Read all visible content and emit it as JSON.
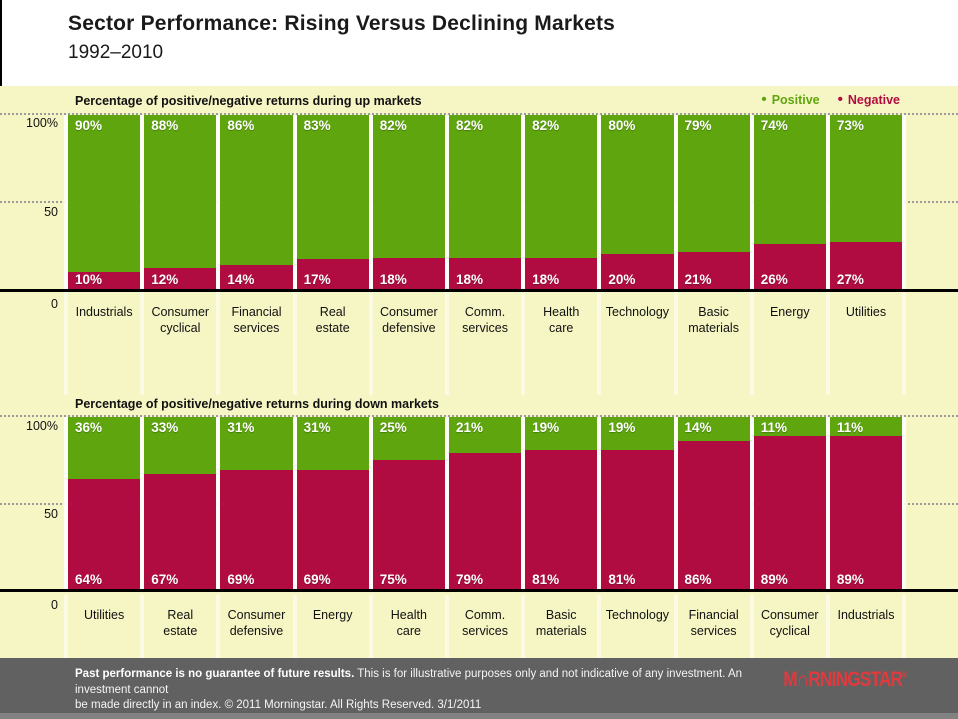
{
  "header": {
    "title": "Sector Performance: Rising Versus Declining Markets",
    "subtitle": "1992–2010"
  },
  "legend": {
    "positive": "Positive",
    "negative": "Negative",
    "bullet": "•"
  },
  "axis": {
    "pct100": "100%",
    "mid": "50",
    "zero": "0"
  },
  "colors": {
    "positive": "#5FA60E",
    "negative": "#B10C41",
    "panel_bg": "#F6F5C4",
    "footer_bg": "#616161",
    "logo_red": "#E03A3E",
    "gridline": "#9B9B9B",
    "zeroline": "#000000"
  },
  "chart_data": [
    {
      "type": "bar",
      "stacked": true,
      "name": "up-markets",
      "title": "Percentage of positive/negative returns during up markets",
      "categories": [
        "Industrials",
        "Consumer\ncyclical",
        "Financial\nservices",
        "Real\nestate",
        "Consumer\ndefensive",
        "Comm.\nservices",
        "Health\ncare",
        "Technology",
        "Basic\nmaterials",
        "Energy",
        "Utilities"
      ],
      "series": [
        {
          "name": "Positive",
          "values": [
            90,
            88,
            86,
            83,
            82,
            82,
            82,
            80,
            79,
            74,
            73
          ]
        },
        {
          "name": "Negative",
          "values": [
            10,
            12,
            14,
            17,
            18,
            18,
            18,
            20,
            21,
            26,
            27
          ]
        }
      ],
      "value_suffix": "%",
      "ylim": [
        0,
        100
      ],
      "yticks": [
        "100%",
        "50",
        "0"
      ],
      "legend_position": "top-right",
      "grid": "dotted-horizontal"
    },
    {
      "type": "bar",
      "stacked": true,
      "name": "down-markets",
      "title": "Percentage of positive/negative returns during down markets",
      "categories": [
        "Utilities",
        "Real\nestate",
        "Consumer\ndefensive",
        "Energy",
        "Health\ncare",
        "Comm.\nservices",
        "Basic\nmaterials",
        "Technology",
        "Financial\nservices",
        "Consumer\ncyclical",
        "Industrials"
      ],
      "series": [
        {
          "name": "Positive",
          "values": [
            36,
            33,
            31,
            31,
            25,
            21,
            19,
            19,
            14,
            11,
            11
          ]
        },
        {
          "name": "Negative",
          "values": [
            64,
            67,
            69,
            69,
            75,
            79,
            81,
            81,
            86,
            89,
            89
          ]
        }
      ],
      "value_suffix": "%",
      "ylim": [
        0,
        100
      ],
      "yticks": [
        "100%",
        "50",
        "0"
      ],
      "legend_position": "none",
      "grid": "dotted-horizontal"
    }
  ],
  "footer": {
    "line1_bold": "Past performance is no guarantee of future results.",
    "line1_rest": " This is for illustrative purposes only and not indicative of any investment. An investment cannot",
    "line2": "be made directly in an index. © 2011 Morningstar. All Rights Reserved. 3/1/2011",
    "logo_text": "M∩RNINGSTAR",
    "logo_reg": "®"
  }
}
